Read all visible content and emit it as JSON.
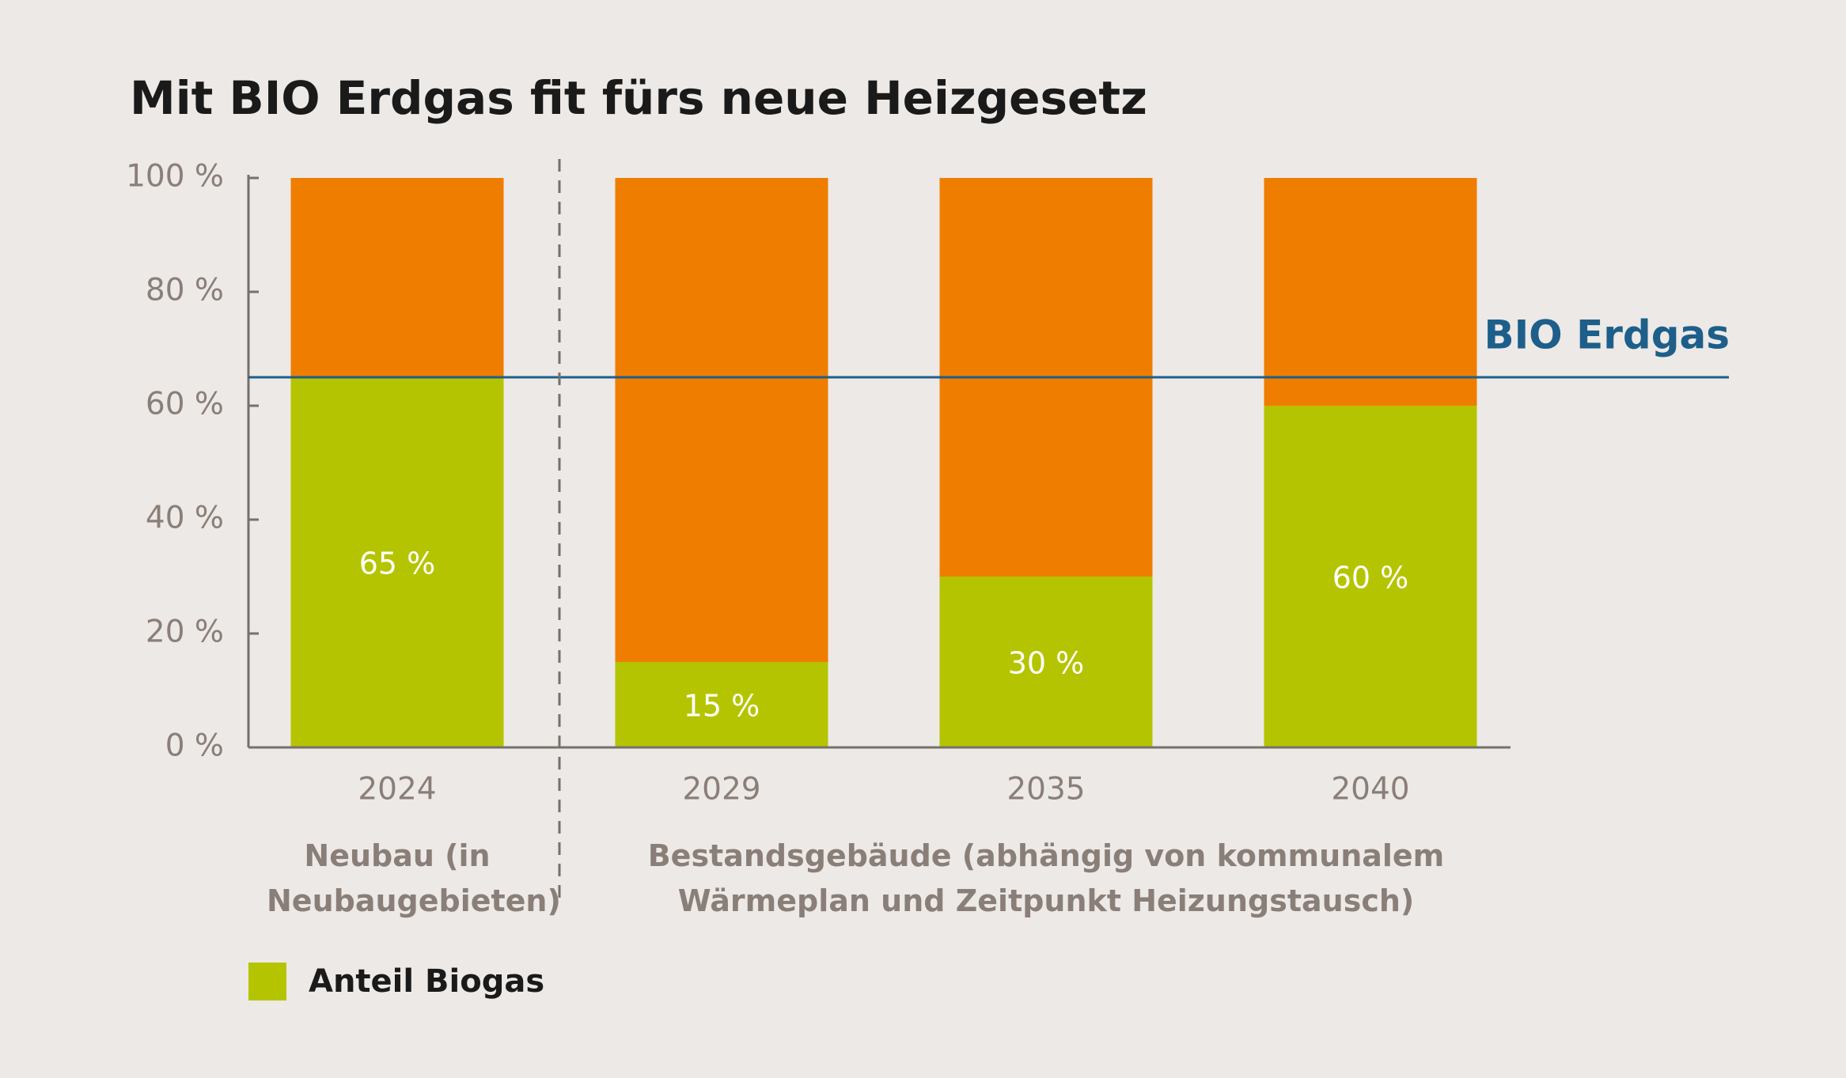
{
  "chart_data": {
    "type": "stacked_bar",
    "title": "Mit BIO Erdgas fit fürs neue Heizgesetz",
    "categories": [
      "2024",
      "2029",
      "2035",
      "2040"
    ],
    "series": [
      {
        "name": "Anteil Biogas",
        "color": "#b5c400",
        "values": [
          65,
          15,
          30,
          60
        ],
        "value_labels": [
          "65 %",
          "15 %",
          "30 %",
          "60 %"
        ]
      },
      {
        "color": "#ef7d00",
        "values": [
          35,
          85,
          70,
          40
        ]
      }
    ],
    "ylim": [
      0,
      100
    ],
    "yticks": [
      {
        "value": 0,
        "label": "0 %"
      },
      {
        "value": 20,
        "label": "20 %"
      },
      {
        "value": 40,
        "label": "40 %"
      },
      {
        "value": 60,
        "label": "60 %"
      },
      {
        "value": 80,
        "label": "80 %"
      },
      {
        "value": 100,
        "label": "100 %"
      }
    ],
    "reference_line": {
      "value": 65,
      "label": "BIO Erdgas",
      "color": "#1d5f8a"
    },
    "groups": [
      {
        "label": "Neubau (in Neubaugebieten)",
        "span": 1
      },
      {
        "label": "Bestandsgebäude (abhängig von kommunalem Wärmeplan und Zeitpunkt Heizungstausch)",
        "span": 3
      }
    ],
    "legend": "bottom-left"
  }
}
